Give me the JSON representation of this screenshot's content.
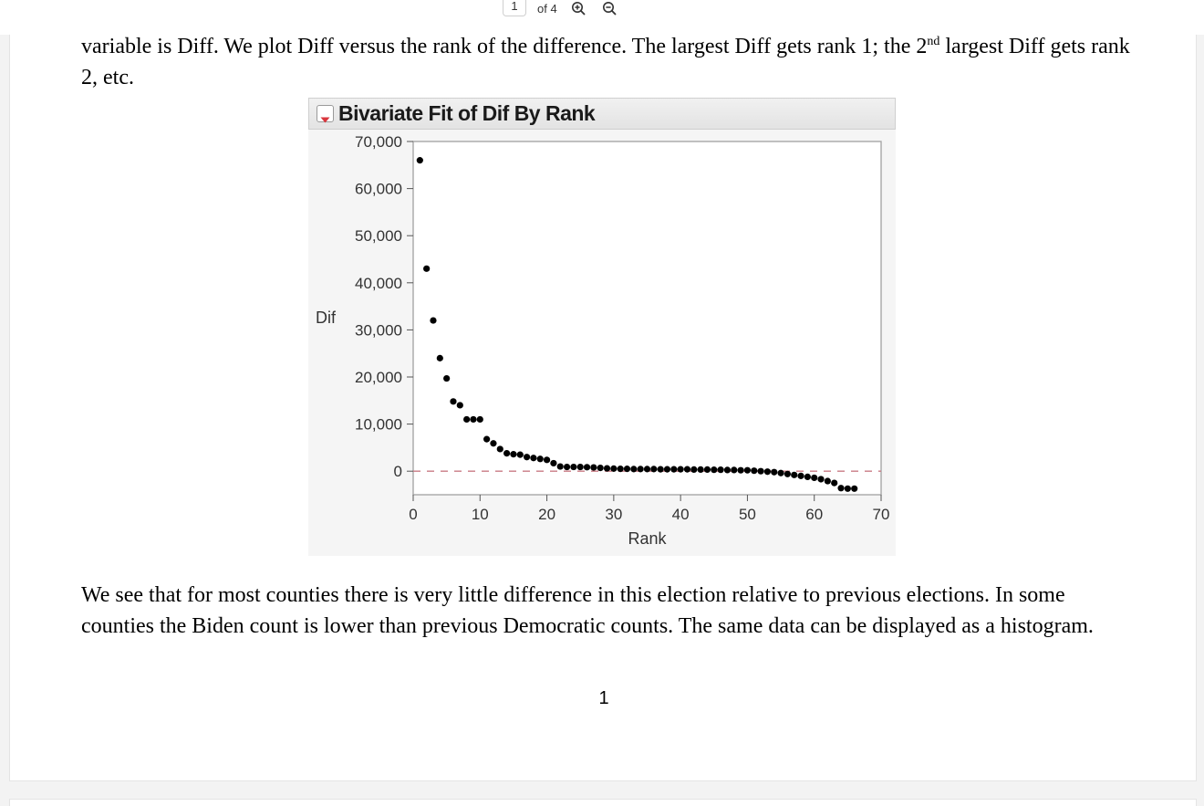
{
  "viewer": {
    "current_page": "1",
    "page_total": "of 4",
    "zoom_in_icon": "zoom-in-icon",
    "zoom_out_icon": "zoom-out-icon"
  },
  "document": {
    "para1_a": "variable is Diff. We plot Diff versus the rank of the difference. The largest Diff gets rank 1; the 2",
    "para1_sup": "nd",
    "para1_b": " largest Diff gets rank 2, etc.",
    "para2": "We see that for most counties there is very little difference in this election relative to previous elections. In some counties the Biden count is lower than previous Democratic counts. The same data can be displayed as a histogram.",
    "page_number": "1"
  },
  "figure": {
    "title": "Bivariate Fit of Dif By Rank",
    "disclosure_icon": "triangle-down-icon",
    "colors": {
      "points": "#000000",
      "reference_line": "#c97b84",
      "frame": "#a0a0a0",
      "plot_bg": "#ffffff"
    }
  },
  "chart_data": {
    "type": "scatter",
    "title": "Bivariate Fit of Dif By Rank",
    "xlabel": "Rank",
    "ylabel": "Dif",
    "xlim": [
      0,
      70
    ],
    "ylim": [
      -5000,
      70000
    ],
    "x_ticks": [
      "0",
      "10",
      "20",
      "30",
      "40",
      "50",
      "60",
      "70"
    ],
    "x_tick_values": [
      0,
      10,
      20,
      30,
      40,
      50,
      60,
      70
    ],
    "y_ticks": [
      "0",
      "10,000",
      "20,000",
      "30,000",
      "40,000",
      "50,000",
      "60,000",
      "70,000"
    ],
    "y_tick_values": [
      0,
      10000,
      20000,
      30000,
      40000,
      50000,
      60000,
      70000
    ],
    "reference_line_y": 0,
    "grid": false,
    "x": [
      1,
      2,
      3,
      4,
      5,
      6,
      7,
      8,
      9,
      10,
      11,
      12,
      13,
      14,
      15,
      16,
      17,
      18,
      19,
      20,
      21,
      22,
      23,
      24,
      25,
      26,
      27,
      28,
      29,
      30,
      31,
      32,
      33,
      34,
      35,
      36,
      37,
      38,
      39,
      40,
      41,
      42,
      43,
      44,
      45,
      46,
      47,
      48,
      49,
      50,
      51,
      52,
      53,
      54,
      55,
      56,
      57,
      58,
      59,
      60,
      61,
      62,
      63,
      64,
      65,
      66
    ],
    "y": [
      66000,
      43000,
      32000,
      24000,
      19700,
      14800,
      14000,
      11000,
      11000,
      11000,
      6800,
      5900,
      4700,
      3800,
      3600,
      3500,
      3000,
      2800,
      2600,
      2400,
      1700,
      1000,
      900,
      900,
      900,
      850,
      800,
      700,
      600,
      550,
      500,
      500,
      450,
      450,
      450,
      450,
      400,
      400,
      400,
      400,
      400,
      350,
      350,
      350,
      300,
      300,
      250,
      250,
      200,
      200,
      100,
      0,
      -100,
      -200,
      -400,
      -600,
      -800,
      -1000,
      -1200,
      -1400,
      -1700,
      -2100,
      -2500,
      -3600,
      -3700,
      -3700
    ]
  }
}
